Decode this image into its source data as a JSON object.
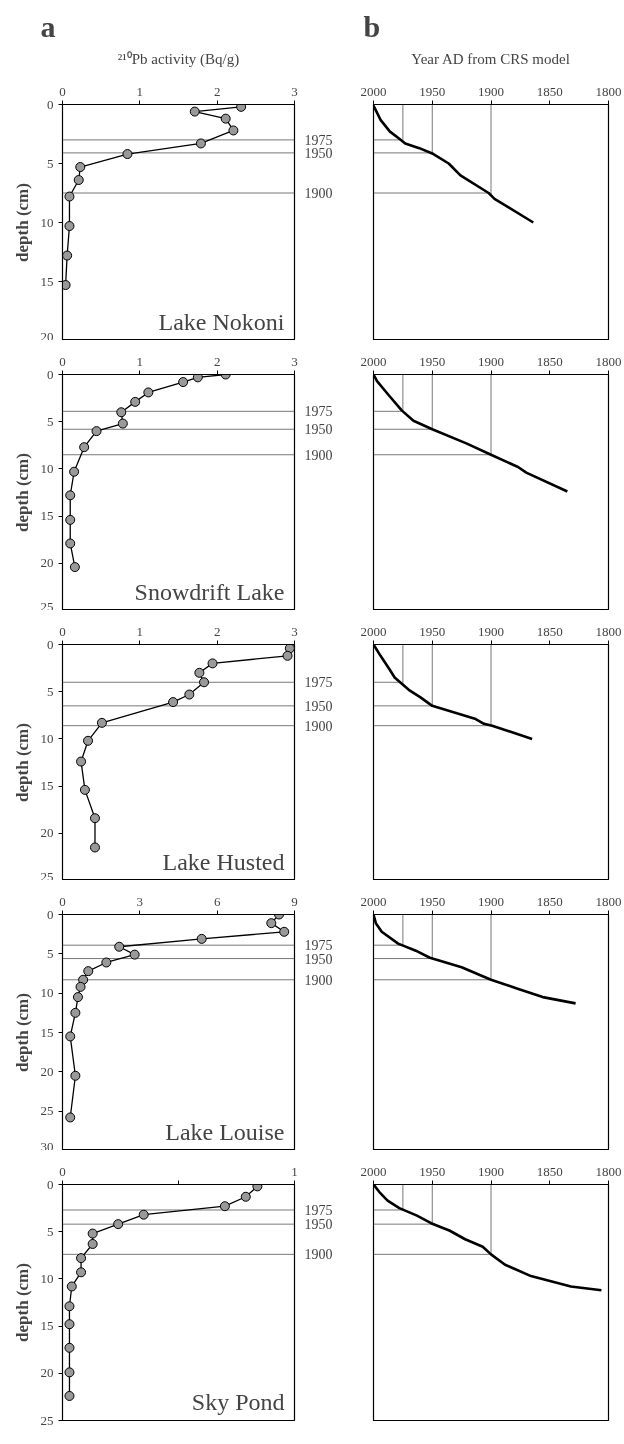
{
  "chart_data": [
    {
      "type": "line",
      "title": "a",
      "xlabel": "²¹⁰Pb activity (Bq/g)",
      "ylabel": "depth (cm)",
      "xlim": [
        0,
        3
      ],
      "xticks": [
        0,
        1,
        2,
        3
      ],
      "ylim": [
        20,
        0
      ],
      "yticks": [
        0,
        5,
        10,
        15,
        20
      ],
      "marker": "circle",
      "annotations": [
        "Lake Nokoni",
        {
          "text": "1975",
          "x": 3,
          "y": 3.0
        },
        {
          "text": "1950",
          "x": 3,
          "y": 4.1
        },
        {
          "text": "1900",
          "x": 3,
          "y": 7.5
        }
      ],
      "ref_lines": [
        {
          "axis": "y",
          "value": 3.0
        },
        {
          "axis": "y",
          "value": 4.1
        },
        {
          "axis": "y",
          "value": 7.5
        }
      ],
      "series": [
        {
          "color": "#000000",
          "x": [
            2.31,
            1.71,
            2.11,
            2.21,
            1.79,
            0.84,
            0.23,
            0.21,
            0.09,
            0.09,
            0.06,
            0.04
          ],
          "values": [
            0.2,
            0.6,
            1.2,
            2.2,
            3.3,
            4.2,
            5.3,
            6.4,
            7.8,
            10.3,
            12.8,
            15.3
          ]
        }
      ]
    },
    {
      "type": "line",
      "title": "b",
      "xlabel": "Year AD from CRS model",
      "xlim": [
        2000,
        1800
      ],
      "xticks": [
        2000,
        1950,
        1900,
        1850,
        1800
      ],
      "ylim": [
        20,
        0
      ],
      "tick_labels": "x",
      "ref_lines": [
        {
          "axis": "x",
          "value": 1975
        },
        {
          "axis": "x",
          "value": 1950
        },
        {
          "axis": "x",
          "value": 1900
        },
        {
          "axis": "y",
          "value": 3.0
        },
        {
          "axis": "y",
          "value": 4.1
        },
        {
          "axis": "y",
          "value": 7.5
        }
      ],
      "series": [
        {
          "color": "#000000",
          "x": [
            2000,
            1994,
            1986,
            1978,
            1973,
            1961,
            1949,
            1936,
            1926,
            1902,
            1897,
            1864
          ],
          "values": [
            0.1,
            1.3,
            2.3,
            2.9,
            3.3,
            3.7,
            4.2,
            5.0,
            6.0,
            7.5,
            8.0,
            10.0
          ]
        }
      ]
    },
    {
      "type": "line",
      "ylabel": "depth (cm)",
      "xlim": [
        0,
        3
      ],
      "xticks": [
        0,
        1,
        2,
        3
      ],
      "ylim": [
        25,
        0
      ],
      "yticks": [
        0,
        5,
        10,
        15,
        20,
        25
      ],
      "marker": "circle",
      "annotations": [
        "Snowdrift Lake",
        {
          "text": "1975",
          "x": 3,
          "y": 3.9
        },
        {
          "text": "1950",
          "x": 3,
          "y": 5.8
        },
        {
          "text": "1900",
          "x": 3,
          "y": 8.5
        }
      ],
      "ref_lines": [
        {
          "axis": "y",
          "value": 3.9
        },
        {
          "axis": "y",
          "value": 5.8
        },
        {
          "axis": "y",
          "value": 8.5
        }
      ],
      "series": [
        {
          "color": "#000000",
          "x": [
            2.11,
            1.75,
            1.56,
            1.11,
            0.94,
            0.76,
            0.78,
            0.44,
            0.28,
            0.15,
            0.1,
            0.1,
            0.1,
            0.16
          ],
          "values": [
            0.0,
            0.3,
            0.8,
            1.9,
            2.9,
            4.0,
            5.2,
            6.0,
            7.7,
            10.3,
            12.8,
            15.4,
            17.9,
            20.4
          ]
        }
      ]
    },
    {
      "type": "line",
      "xlim": [
        2000,
        1800
      ],
      "xticks": [
        2000,
        1950,
        1900,
        1850,
        1800
      ],
      "ylim": [
        25,
        0
      ],
      "tick_labels": "x",
      "ref_lines": [
        {
          "axis": "x",
          "value": 1975
        },
        {
          "axis": "x",
          "value": 1950
        },
        {
          "axis": "x",
          "value": 1900
        },
        {
          "axis": "y",
          "value": 3.9
        },
        {
          "axis": "y",
          "value": 5.8
        },
        {
          "axis": "y",
          "value": 8.5
        }
      ],
      "series": [
        {
          "color": "#000000",
          "x": [
            2000,
            1997,
            1987,
            1976,
            1966,
            1950,
            1921,
            1900,
            1877,
            1870,
            1835
          ],
          "values": [
            0.0,
            0.7,
            2.2,
            3.8,
            4.9,
            5.8,
            7.3,
            8.5,
            9.8,
            10.4,
            12.4
          ]
        }
      ]
    },
    {
      "type": "line",
      "ylabel": "depth (cm)",
      "xlim": [
        0,
        3
      ],
      "xticks": [
        0,
        1,
        2,
        3
      ],
      "ylim": [
        25,
        0
      ],
      "yticks": [
        0,
        5,
        10,
        15,
        20,
        25
      ],
      "marker": "circle",
      "annotations": [
        "Lake Husted",
        {
          "text": "1975",
          "x": 3,
          "y": 4.0
        },
        {
          "text": "1950",
          "x": 3,
          "y": 6.5
        },
        {
          "text": "1900",
          "x": 3,
          "y": 8.6
        }
      ],
      "ref_lines": [
        {
          "axis": "y",
          "value": 4.0
        },
        {
          "axis": "y",
          "value": 6.5
        },
        {
          "axis": "y",
          "value": 8.6
        }
      ],
      "series": [
        {
          "color": "#000000",
          "x": [
            2.94,
            2.91,
            1.94,
            1.77,
            1.83,
            1.64,
            1.43,
            0.51,
            0.33,
            0.24,
            0.29,
            0.42,
            0.42
          ],
          "values": [
            0.4,
            1.2,
            2.0,
            3.0,
            4.0,
            5.3,
            6.1,
            8.3,
            10.2,
            12.4,
            15.4,
            18.4,
            21.5
          ]
        }
      ]
    },
    {
      "type": "line",
      "xlim": [
        2000,
        1800
      ],
      "xticks": [
        2000,
        1950,
        1900,
        1850,
        1800
      ],
      "ylim": [
        25,
        0
      ],
      "tick_labels": "x",
      "ref_lines": [
        {
          "axis": "x",
          "value": 1975
        },
        {
          "axis": "x",
          "value": 1950
        },
        {
          "axis": "x",
          "value": 1900
        },
        {
          "axis": "y",
          "value": 4.0
        },
        {
          "axis": "y",
          "value": 6.5
        },
        {
          "axis": "y",
          "value": 8.6
        }
      ],
      "series": [
        {
          "color": "#000000",
          "x": [
            2000,
            1994,
            1986,
            1982,
            1970,
            1960,
            1950,
            1913,
            1906,
            1899,
            1865
          ],
          "values": [
            0.0,
            1.2,
            2.7,
            3.5,
            4.8,
            5.6,
            6.5,
            7.9,
            8.4,
            8.6,
            10.0
          ]
        }
      ]
    },
    {
      "type": "line",
      "ylabel": "depth (cm)",
      "xlim": [
        0,
        9
      ],
      "xticks": [
        0,
        3,
        6,
        9
      ],
      "ylim": [
        30,
        0
      ],
      "yticks": [
        0,
        5,
        10,
        15,
        20,
        25,
        30
      ],
      "marker": "circle",
      "annotations": [
        "Lake Louise",
        {
          "text": "1975",
          "x": 9,
          "y": 3.9
        },
        {
          "text": "1950",
          "x": 9,
          "y": 5.6
        },
        {
          "text": "1900",
          "x": 9,
          "y": 8.3
        }
      ],
      "ref_lines": [
        {
          "axis": "y",
          "value": 3.9
        },
        {
          "axis": "y",
          "value": 5.6
        },
        {
          "axis": "y",
          "value": 8.3
        }
      ],
      "series": [
        {
          "color": "#000000",
          "x": [
            8.4,
            8.1,
            8.6,
            5.4,
            2.2,
            2.8,
            1.7,
            1.0,
            0.8,
            0.7,
            0.6,
            0.5,
            0.3,
            0.5,
            0.3
          ],
          "values": [
            0.0,
            1.1,
            2.2,
            3.1,
            4.1,
            5.1,
            6.1,
            7.2,
            8.3,
            9.2,
            10.5,
            12.5,
            15.5,
            20.5,
            25.8
          ]
        }
      ]
    },
    {
      "type": "line",
      "xlim": [
        2000,
        1800
      ],
      "xticks": [
        2000,
        1950,
        1900,
        1850,
        1800
      ],
      "ylim": [
        30,
        0
      ],
      "tick_labels": "x",
      "ref_lines": [
        {
          "axis": "x",
          "value": 1975
        },
        {
          "axis": "x",
          "value": 1950
        },
        {
          "axis": "x",
          "value": 1900
        },
        {
          "axis": "y",
          "value": 3.9
        },
        {
          "axis": "y",
          "value": 5.6
        },
        {
          "axis": "y",
          "value": 8.3
        }
      ],
      "series": [
        {
          "color": "#000000",
          "x": [
            2000,
            1998,
            1993,
            1979,
            1964,
            1952,
            1925,
            1900,
            1878,
            1856,
            1828
          ],
          "values": [
            0.0,
            1.1,
            2.2,
            3.7,
            4.6,
            5.5,
            6.7,
            8.3,
            9.4,
            10.5,
            11.3
          ]
        }
      ]
    },
    {
      "type": "line",
      "ylabel": "depth (cm)",
      "xlim": [
        0,
        1
      ],
      "xticks": [
        0,
        {
          "value": 0.5,
          "label": null
        },
        1
      ],
      "ylim": [
        25,
        0
      ],
      "yticks": [
        0,
        5,
        10,
        15,
        20,
        25
      ],
      "marker": "circle",
      "annotations": [
        "Sky Pond",
        {
          "text": "1975",
          "x": 1,
          "y": 2.7
        },
        {
          "text": "1950",
          "x": 1,
          "y": 4.2
        },
        {
          "text": "1900",
          "x": 1,
          "y": 7.4
        }
      ],
      "ref_lines": [
        {
          "axis": "y",
          "value": 2.7
        },
        {
          "axis": "y",
          "value": 4.2
        },
        {
          "axis": "y",
          "value": 7.4
        }
      ],
      "series": [
        {
          "color": "#000000",
          "x": [
            0.84,
            0.79,
            0.7,
            0.35,
            0.24,
            0.13,
            0.13,
            0.08,
            0.08,
            0.04,
            0.03,
            0.03,
            0.03,
            0.03,
            0.03
          ],
          "values": [
            0.2,
            1.3,
            2.3,
            3.2,
            4.2,
            5.2,
            6.3,
            7.8,
            9.3,
            10.8,
            12.9,
            14.8,
            17.3,
            19.9,
            22.4
          ]
        }
      ]
    },
    {
      "type": "line",
      "xlim": [
        2000,
        1800
      ],
      "xticks": [
        2000,
        1950,
        1900,
        1850,
        1800
      ],
      "ylim": [
        25,
        0
      ],
      "tick_labels": "x",
      "ref_lines": [
        {
          "axis": "x",
          "value": 1975
        },
        {
          "axis": "x",
          "value": 1950
        },
        {
          "axis": "x",
          "value": 1900
        },
        {
          "axis": "y",
          "value": 2.7
        },
        {
          "axis": "y",
          "value": 4.2
        },
        {
          "axis": "y",
          "value": 7.4
        }
      ],
      "series": [
        {
          "color": "#000000",
          "x": [
            2000,
            1995,
            1988,
            1978,
            1963,
            1951,
            1935,
            1922,
            1907,
            1900,
            1888,
            1866,
            1832,
            1806
          ],
          "values": [
            0.0,
            0.8,
            1.7,
            2.5,
            3.3,
            4.1,
            4.9,
            5.8,
            6.6,
            7.4,
            8.5,
            9.7,
            10.8,
            11.2
          ]
        }
      ]
    }
  ]
}
